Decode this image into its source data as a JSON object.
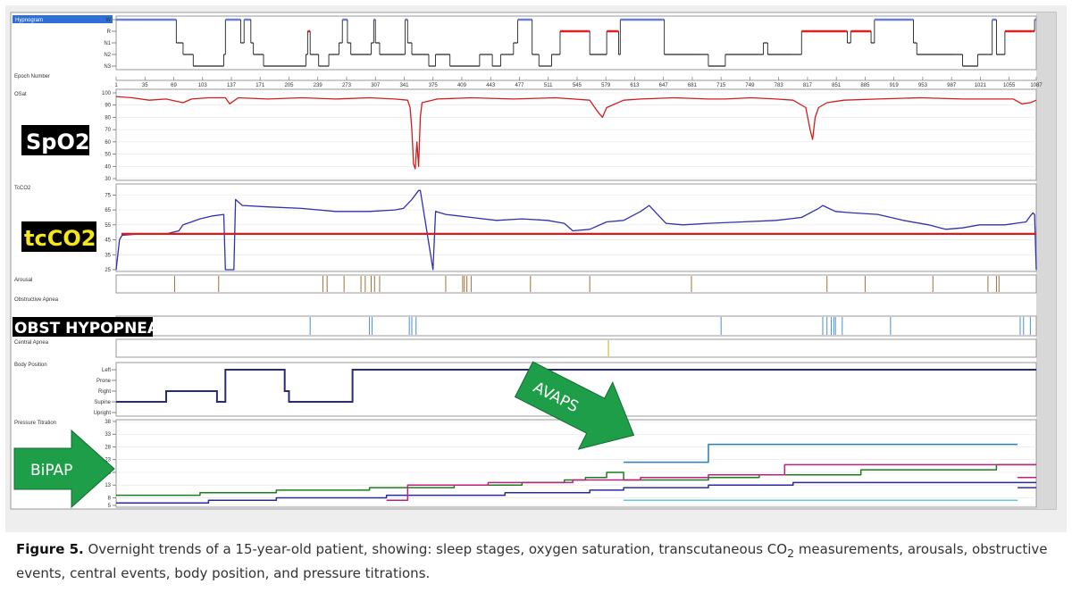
{
  "panels": {
    "hypnogram": "Hypnogram",
    "epoch_number": "Epoch Number",
    "osat": "OSat",
    "tcco2": "TcCO2",
    "arousal": "Arousal",
    "obstructive_apnea": "Obstructive Apnea",
    "central_apnea": "Central Apnea",
    "body_position": "Body Position",
    "pressure_titration": "Pressure Titration"
  },
  "overlay_labels": {
    "spo2": "SpO2",
    "tcco2": "tcCO2",
    "obst_hypopnea": "OBST HYPOPNEA",
    "bipap": "BiPAP",
    "avaps": "AVAPS"
  },
  "caption": {
    "figure": "Figure 5.",
    "text_before_sub": " Overnight trends of a 15-year-old patient, showing: sleep stages, oxygen saturation, transcutaneous CO",
    "sub": "2",
    "text_after_sub": " measurements, arousals, obstructive events, central events, body position, and pressure titrations."
  },
  "colors": {
    "hypnogram": "#222222",
    "rem": "#e02020",
    "wake": "#6a7fd8",
    "spo2": "#d41c1c",
    "tcco2": "#3030b0",
    "tcco2_ref": "#e01818",
    "arousal": "#a0703a",
    "apnea_event": "#4a8fd0",
    "central_event": "#d4b000",
    "position": "#2a2a7a",
    "arrow": "#1e9e48",
    "p_green": "#1a7f1a",
    "p_blue": "#2a2aa0",
    "p_magenta": "#c0207f",
    "p_teal": "#2a7fb0",
    "p_cyan": "#60c8d8"
  },
  "chart_data": {
    "type": "line",
    "epoch_ticks": [
      "1",
      "35",
      "69",
      "103",
      "137",
      "171",
      "205",
      "239",
      "273",
      "307",
      "341",
      "375",
      "409",
      "443",
      "477",
      "511",
      "545",
      "579",
      "613",
      "647",
      "681",
      "715",
      "749",
      "783",
      "817",
      "851",
      "885",
      "919",
      "953",
      "987",
      "1021",
      "1055",
      "1087"
    ],
    "hypnogram": {
      "stages": [
        "W",
        "R",
        "N1",
        "N2",
        "N3"
      ],
      "series": [
        [
          1,
          "W"
        ],
        [
          70,
          "W"
        ],
        [
          72,
          "N1"
        ],
        [
          80,
          "N2"
        ],
        [
          92,
          "N3"
        ],
        [
          128,
          "N2"
        ],
        [
          130,
          "W"
        ],
        [
          146,
          "W"
        ],
        [
          148,
          "N1"
        ],
        [
          152,
          "W"
        ],
        [
          158,
          "W"
        ],
        [
          160,
          "N1"
        ],
        [
          163,
          "N2"
        ],
        [
          175,
          "N3"
        ],
        [
          225,
          "N2"
        ],
        [
          227,
          "R"
        ],
        [
          230,
          "N2"
        ],
        [
          240,
          "N3"
        ],
        [
          252,
          "N2"
        ],
        [
          262,
          "N2"
        ],
        [
          264,
          "N1"
        ],
        [
          268,
          "W"
        ],
        [
          274,
          "N1"
        ],
        [
          278,
          "N2"
        ],
        [
          300,
          "N2"
        ],
        [
          302,
          "N1"
        ],
        [
          305,
          "W"
        ],
        [
          307,
          "N1"
        ],
        [
          312,
          "N2"
        ],
        [
          340,
          "N2"
        ],
        [
          342,
          "W"
        ],
        [
          345,
          "N1"
        ],
        [
          350,
          "N2"
        ],
        [
          370,
          "N3"
        ],
        [
          378,
          "N2"
        ],
        [
          395,
          "N3"
        ],
        [
          430,
          "N2"
        ],
        [
          445,
          "N3"
        ],
        [
          455,
          "N2"
        ],
        [
          470,
          "N1"
        ],
        [
          475,
          "W"
        ],
        [
          490,
          "W"
        ],
        [
          492,
          "N2"
        ],
        [
          500,
          "N3"
        ],
        [
          515,
          "N2"
        ],
        [
          525,
          "R"
        ],
        [
          558,
          "R"
        ],
        [
          560,
          "N2"
        ],
        [
          580,
          "R"
        ],
        [
          592,
          "R"
        ],
        [
          594,
          "N2"
        ],
        [
          596,
          "W"
        ],
        [
          646,
          "W"
        ],
        [
          648,
          "N2"
        ],
        [
          690,
          "N2"
        ],
        [
          700,
          "N3"
        ],
        [
          720,
          "N2"
        ],
        [
          760,
          "N2"
        ],
        [
          765,
          "N1"
        ],
        [
          770,
          "N2"
        ],
        [
          800,
          "N2"
        ],
        [
          810,
          "R"
        ],
        [
          862,
          "R"
        ],
        [
          864,
          "N1"
        ],
        [
          868,
          "R"
        ],
        [
          890,
          "R"
        ],
        [
          892,
          "N1"
        ],
        [
          896,
          "W"
        ],
        [
          940,
          "W"
        ],
        [
          942,
          "N1"
        ],
        [
          946,
          "N2"
        ],
        [
          990,
          "N2"
        ],
        [
          1000,
          "N3"
        ],
        [
          1018,
          "N2"
        ],
        [
          1030,
          "N2"
        ],
        [
          1035,
          "W"
        ],
        [
          1040,
          "N2"
        ],
        [
          1050,
          "R"
        ],
        [
          1082,
          "R"
        ],
        [
          1085,
          "W"
        ],
        [
          1087,
          "W"
        ]
      ]
    },
    "spo2": {
      "ylim": [
        30,
        100
      ],
      "yticks": [
        30,
        40,
        50,
        60,
        70,
        80,
        90,
        100
      ],
      "series": [
        [
          1,
          97
        ],
        [
          20,
          96
        ],
        [
          40,
          94
        ],
        [
          60,
          95
        ],
        [
          80,
          92
        ],
        [
          90,
          95
        ],
        [
          110,
          96
        ],
        [
          130,
          96
        ],
        [
          135,
          91
        ],
        [
          145,
          96
        ],
        [
          180,
          95
        ],
        [
          220,
          96
        ],
        [
          260,
          95
        ],
        [
          300,
          96
        ],
        [
          330,
          95
        ],
        [
          345,
          94
        ],
        [
          348,
          88
        ],
        [
          350,
          70
        ],
        [
          352,
          42
        ],
        [
          354,
          38
        ],
        [
          356,
          60
        ],
        [
          358,
          40
        ],
        [
          360,
          80
        ],
        [
          362,
          92
        ],
        [
          380,
          95
        ],
        [
          420,
          96
        ],
        [
          470,
          95
        ],
        [
          520,
          96
        ],
        [
          560,
          94
        ],
        [
          565,
          89
        ],
        [
          570,
          84
        ],
        [
          575,
          80
        ],
        [
          580,
          88
        ],
        [
          600,
          94
        ],
        [
          620,
          95
        ],
        [
          660,
          96
        ],
        [
          700,
          95
        ],
        [
          720,
          95
        ],
        [
          750,
          96
        ],
        [
          780,
          95
        ],
        [
          800,
          94
        ],
        [
          815,
          88
        ],
        [
          820,
          70
        ],
        [
          823,
          62
        ],
        [
          826,
          80
        ],
        [
          830,
          88
        ],
        [
          840,
          92
        ],
        [
          860,
          94
        ],
        [
          900,
          95
        ],
        [
          950,
          96
        ],
        [
          1000,
          95
        ],
        [
          1040,
          95
        ],
        [
          1060,
          95
        ],
        [
          1070,
          91
        ],
        [
          1080,
          92
        ],
        [
          1087,
          94
        ]
      ]
    },
    "tcco2": {
      "ylim": [
        25,
        80
      ],
      "yticks": [
        25,
        35,
        45,
        55,
        65,
        75
      ],
      "ref_line": 49,
      "series": [
        [
          1,
          25
        ],
        [
          5,
          45
        ],
        [
          8,
          48
        ],
        [
          30,
          49
        ],
        [
          60,
          49
        ],
        [
          75,
          51
        ],
        [
          80,
          55
        ],
        [
          90,
          57
        ],
        [
          100,
          59
        ],
        [
          115,
          61
        ],
        [
          128,
          62
        ],
        [
          130,
          25
        ],
        [
          140,
          25
        ],
        [
          142,
          72
        ],
        [
          150,
          68
        ],
        [
          180,
          67
        ],
        [
          220,
          66
        ],
        [
          260,
          64
        ],
        [
          300,
          64
        ],
        [
          330,
          65
        ],
        [
          340,
          66
        ],
        [
          350,
          72
        ],
        [
          358,
          78
        ],
        [
          360,
          78
        ],
        [
          375,
          25
        ],
        [
          378,
          64
        ],
        [
          390,
          62
        ],
        [
          420,
          60
        ],
        [
          450,
          58
        ],
        [
          480,
          59
        ],
        [
          510,
          58
        ],
        [
          530,
          56
        ],
        [
          540,
          51
        ],
        [
          560,
          52
        ],
        [
          580,
          57
        ],
        [
          600,
          58
        ],
        [
          610,
          61
        ],
        [
          620,
          64
        ],
        [
          630,
          68
        ],
        [
          640,
          62
        ],
        [
          650,
          56
        ],
        [
          670,
          55
        ],
        [
          700,
          56
        ],
        [
          740,
          57
        ],
        [
          780,
          58
        ],
        [
          810,
          60
        ],
        [
          830,
          66
        ],
        [
          835,
          68
        ],
        [
          850,
          64
        ],
        [
          870,
          63
        ],
        [
          900,
          62
        ],
        [
          930,
          58
        ],
        [
          960,
          55
        ],
        [
          980,
          52
        ],
        [
          1000,
          53
        ],
        [
          1020,
          55
        ],
        [
          1050,
          55
        ],
        [
          1075,
          57
        ],
        [
          1080,
          61
        ],
        [
          1083,
          63
        ],
        [
          1085,
          62
        ],
        [
          1087,
          25
        ]
      ]
    },
    "arousal_epochs": [
      70,
      122,
      245,
      250,
      270,
      290,
      295,
      302,
      306,
      312,
      390,
      410,
      412,
      415,
      420,
      490,
      560,
      680,
      840,
      885,
      965,
      1030,
      1040,
      1043
    ],
    "obstructive_hypopnea_epochs": [
      230,
      300,
      303,
      347,
      350,
      355,
      715,
      835,
      840,
      845,
      848,
      850,
      858,
      915,
      1068,
      1072,
      1080
    ],
    "central_apnea_epochs": [
      582
    ],
    "body_position": {
      "levels": [
        "Left",
        "Prone",
        "Right",
        "Supine",
        "Upright"
      ],
      "series": [
        [
          1,
          "Supine"
        ],
        [
          60,
          "Supine"
        ],
        [
          60,
          "Right"
        ],
        [
          120,
          "Right"
        ],
        [
          120,
          "Supine"
        ],
        [
          130,
          "Supine"
        ],
        [
          130,
          "Left"
        ],
        [
          200,
          "Left"
        ],
        [
          200,
          "Right"
        ],
        [
          205,
          "Right"
        ],
        [
          205,
          "Supine"
        ],
        [
          280,
          "Supine"
        ],
        [
          280,
          "Left"
        ],
        [
          1087,
          "Left"
        ]
      ]
    },
    "pressure": {
      "ylim": [
        5,
        38
      ],
      "yticks": [
        5,
        8,
        13,
        18,
        23,
        28,
        33,
        38
      ],
      "series": [
        {
          "name": "",
          "color": "#1a7f1a",
          "points": [
            [
              1,
              9
            ],
            [
              100,
              9
            ],
            [
              100,
              10
            ],
            [
              190,
              10
            ],
            [
              190,
              11
            ],
            [
              300,
              11
            ],
            [
              300,
              12
            ],
            [
              400,
              12
            ],
            [
              400,
              13
            ],
            [
              480,
              13
            ],
            [
              480,
              14
            ],
            [
              530,
              14
            ],
            [
              530,
              15
            ],
            [
              555,
              15
            ],
            [
              555,
              16
            ],
            [
              580,
              16
            ],
            [
              580,
              18
            ],
            [
              600,
              18
            ],
            [
              600,
              15
            ],
            [
              700,
              15
            ],
            [
              700,
              16
            ],
            [
              760,
              16
            ],
            [
              760,
              17
            ],
            [
              880,
              17
            ],
            [
              880,
              19
            ],
            [
              1040,
              19
            ],
            [
              1040,
              21
            ],
            [
              1087,
              21
            ]
          ]
        },
        {
          "name": "",
          "color": "#2a2aa0",
          "points": [
            [
              1,
              6
            ],
            [
              110,
              6
            ],
            [
              110,
              7
            ],
            [
              190,
              7
            ],
            [
              190,
              8
            ],
            [
              320,
              8
            ],
            [
              320,
              9
            ],
            [
              460,
              9
            ],
            [
              460,
              10
            ],
            [
              560,
              10
            ],
            [
              560,
              11
            ],
            [
              600,
              11
            ],
            [
              600,
              12
            ],
            [
              700,
              12
            ],
            [
              700,
              13
            ],
            [
              800,
              13
            ],
            [
              800,
              14
            ],
            [
              1087,
              14
            ]
          ]
        },
        {
          "name": "",
          "color": "#c0207f",
          "points": [
            [
              320,
              7
            ],
            [
              345,
              7
            ],
            [
              345,
              13
            ],
            [
              440,
              13
            ],
            [
              440,
              14
            ],
            [
              540,
              14
            ],
            [
              540,
              15
            ],
            [
              620,
              15
            ],
            [
              620,
              16
            ],
            [
              700,
              16
            ],
            [
              700,
              17
            ],
            [
              790,
              17
            ],
            [
              790,
              21
            ],
            [
              1087,
              21
            ]
          ]
        },
        {
          "name": "",
          "color": "#2a7fb0",
          "points": [
            [
              600,
              22
            ],
            [
              700,
              22
            ],
            [
              700,
              29
            ],
            [
              1065,
              29
            ]
          ]
        },
        {
          "name": "",
          "color": "#c0207f",
          "points": [
            [
              1065,
              16
            ],
            [
              1087,
              16
            ]
          ]
        },
        {
          "name": "",
          "color": "#60c8d8",
          "points": [
            [
              600,
              7
            ],
            [
              1065,
              7
            ]
          ]
        },
        {
          "name": "",
          "color": "#2a2aa0",
          "points": [
            [
              1065,
              12
            ],
            [
              1087,
              12
            ]
          ]
        }
      ]
    }
  }
}
